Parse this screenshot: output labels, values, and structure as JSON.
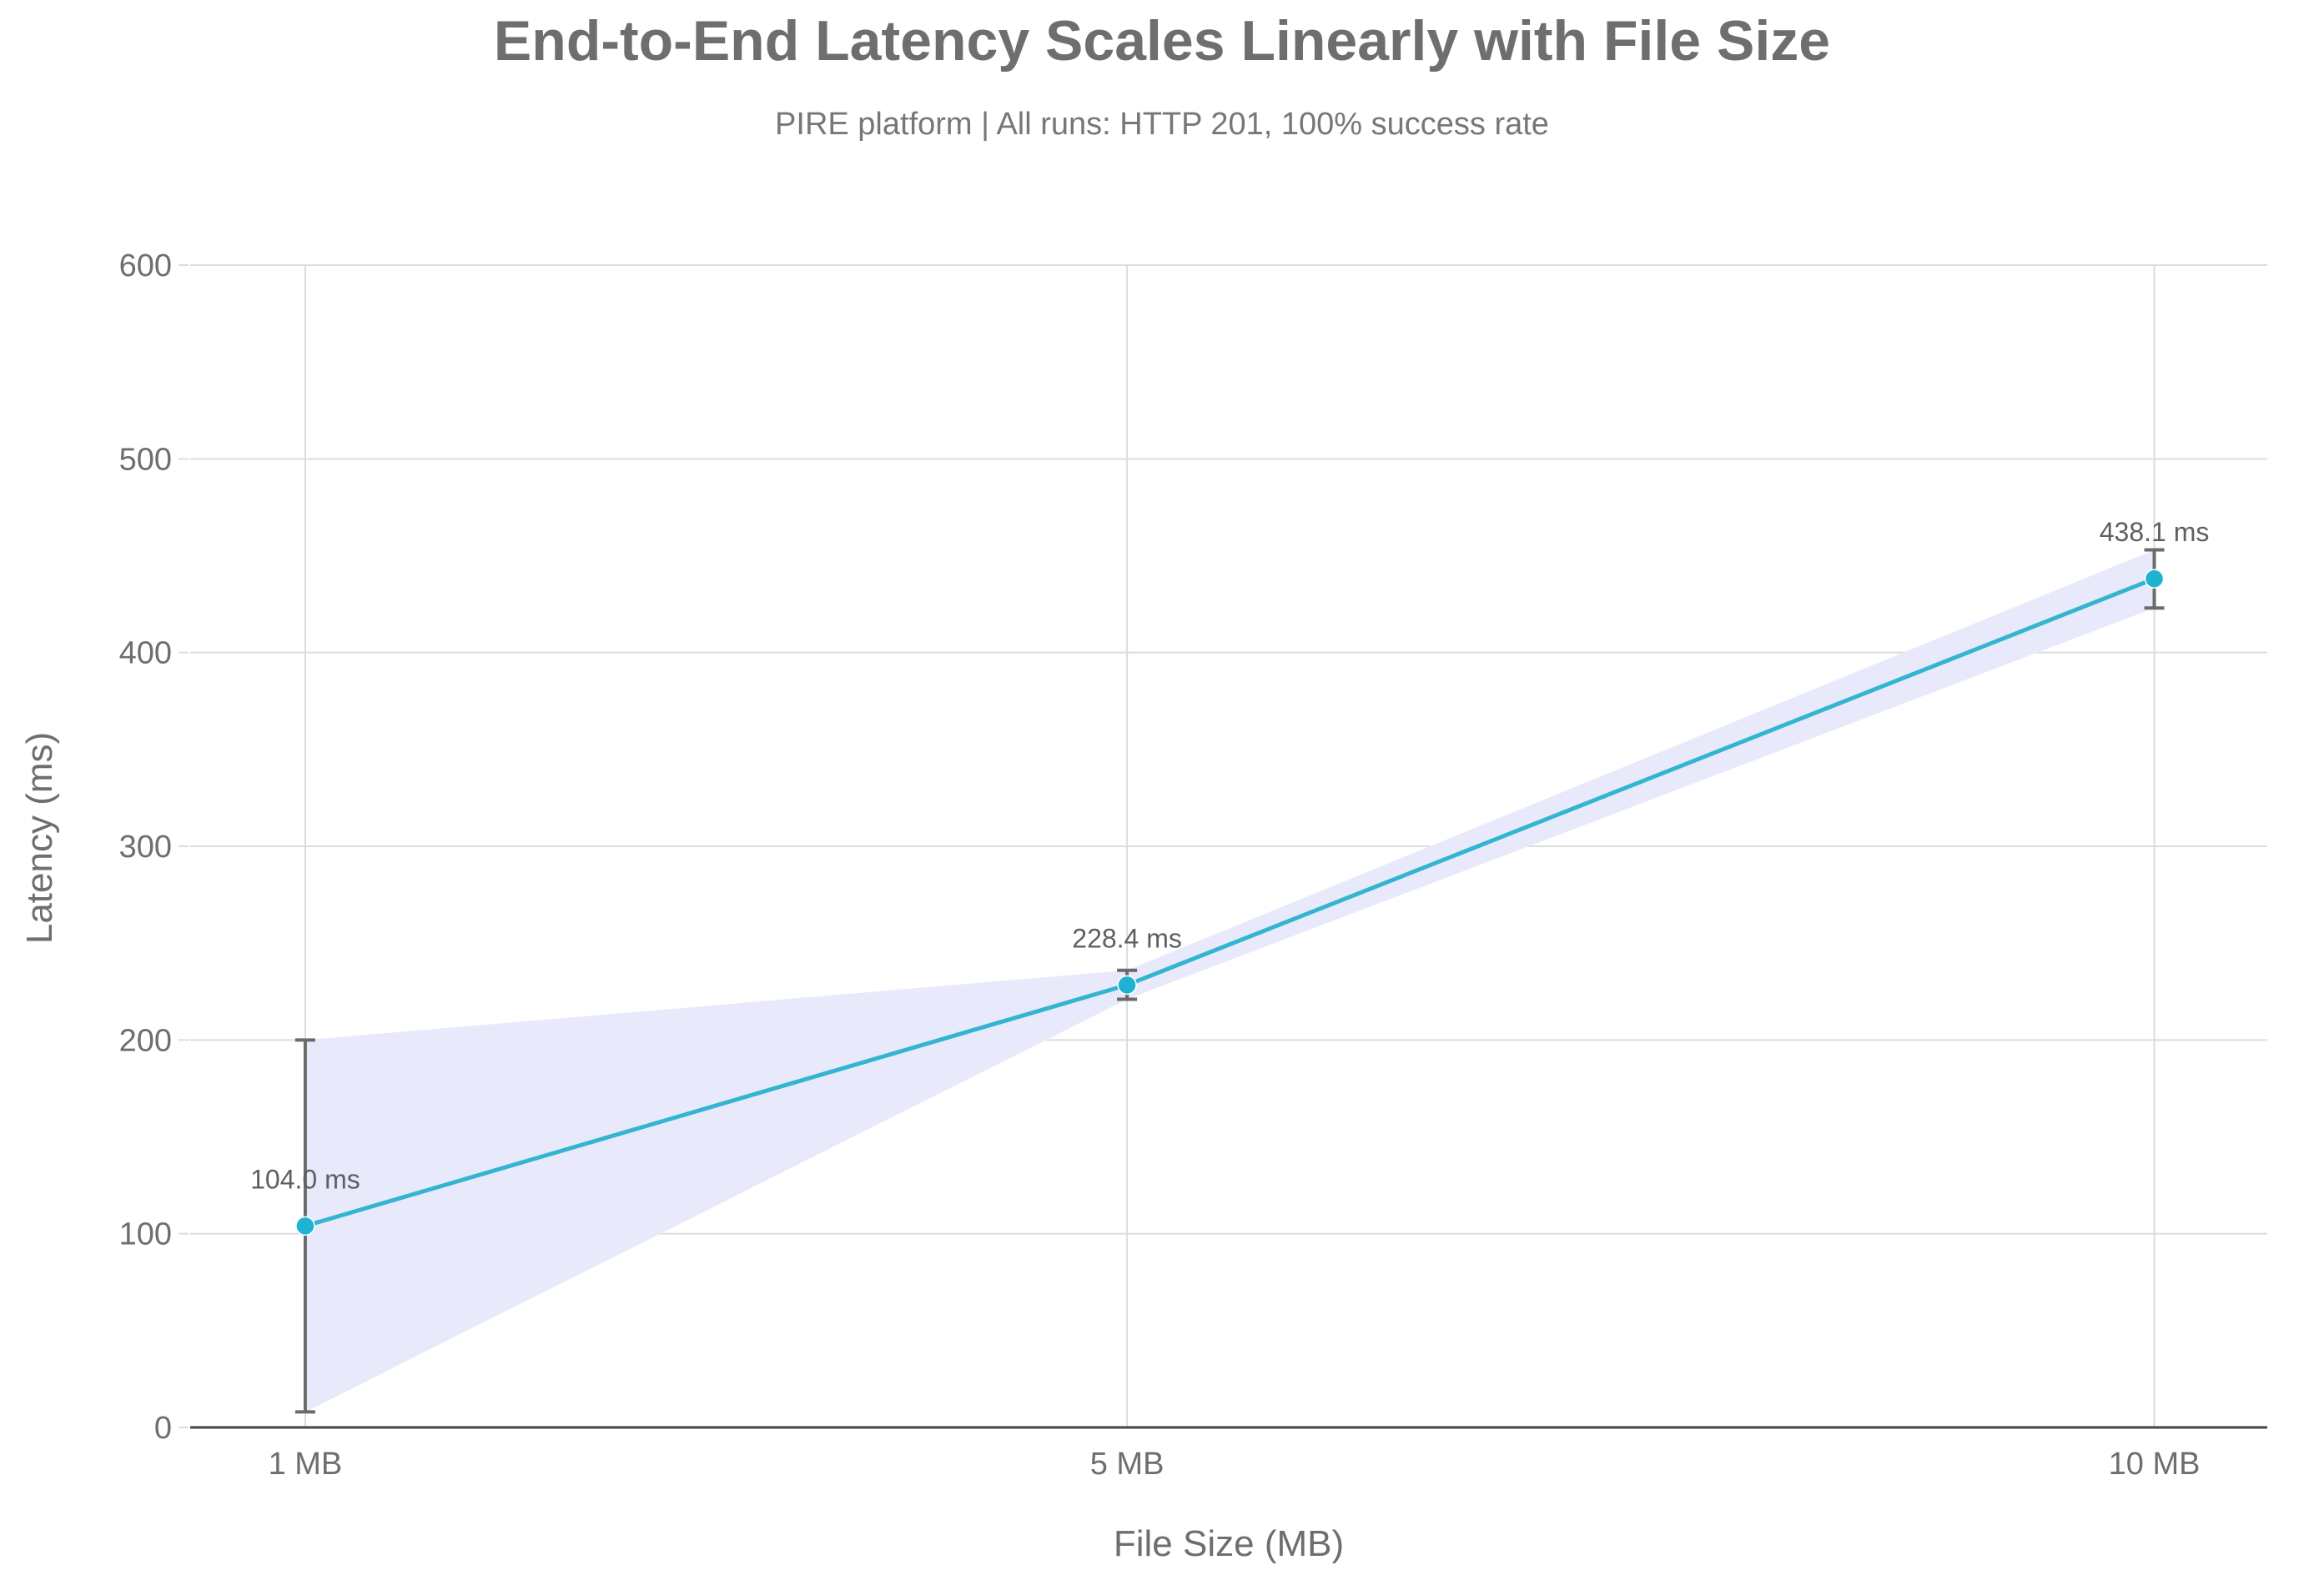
{
  "chart_data": {
    "type": "line",
    "title": "End-to-End Latency Scales Linearly with File Size",
    "subtitle": "PIRE platform | All runs: HTTP 201, 100% success rate",
    "xlabel": "File Size (MB)",
    "ylabel": "Latency (ms)",
    "categories": [
      "1 MB",
      "5 MB",
      "10 MB"
    ],
    "x": [
      1,
      5,
      10
    ],
    "xlim": [
      0.44,
      10.55
    ],
    "ylim": [
      0,
      600
    ],
    "yticks": [
      0,
      100,
      200,
      300,
      400,
      500,
      600
    ],
    "grid": true,
    "series": [
      {
        "values": [
          104.0,
          228.4,
          438.1
        ],
        "error_low": [
          8,
          221,
          423
        ],
        "error_high": [
          200,
          236,
          453
        ],
        "band_low": [
          8,
          221,
          423
        ],
        "band_high": [
          200,
          236,
          453
        ],
        "labels": [
          "104.0 ms",
          "228.4 ms",
          "438.1 ms"
        ]
      }
    ],
    "colors": {
      "line": "#33b5d1",
      "marker": "#1fb3d2",
      "band": "#e8eafc",
      "error_bar": "#6b6b6b",
      "grid": "#dcdcdc",
      "axis": "#444444"
    }
  }
}
